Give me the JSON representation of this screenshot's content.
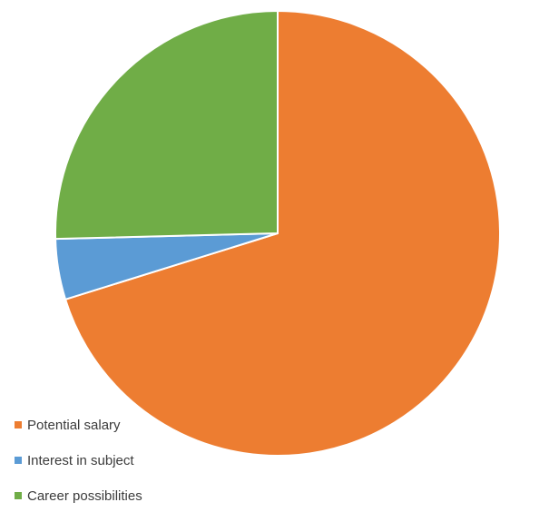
{
  "chart_data": {
    "type": "pie",
    "title": "",
    "start_angle_deg": 0,
    "direction": "clockwise",
    "slice_border_color": "#ffffff",
    "legend_position": "bottom-left",
    "series": [
      {
        "categories": [
          "Potential salary",
          "Interest in subject",
          "Career possibilities"
        ],
        "values": [
          70.2,
          4.4,
          25.4
        ],
        "colors": [
          "#ED7D31",
          "#5B9BD5",
          "#70AD47"
        ]
      }
    ]
  }
}
